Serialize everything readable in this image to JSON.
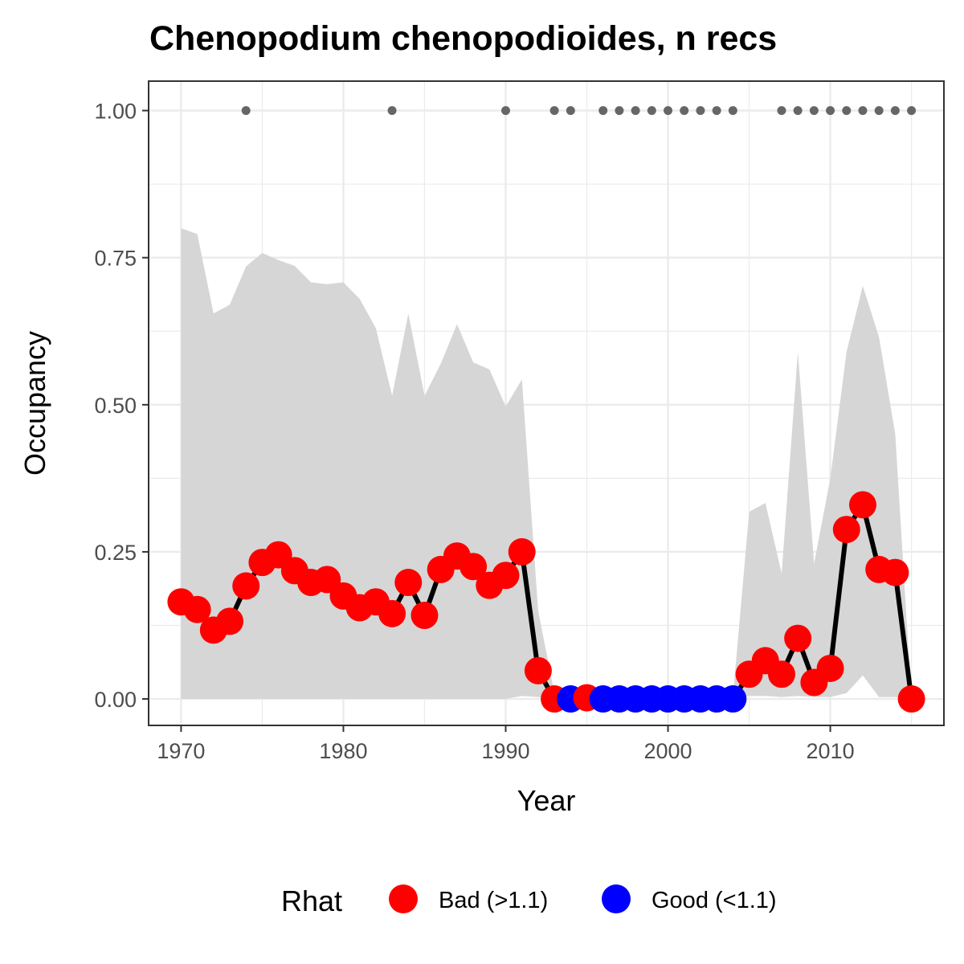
{
  "chart_data": {
    "type": "line",
    "title": "Chenopodium chenopodioides, n recs",
    "xlabel": "Year",
    "ylabel": "Occupancy",
    "xlim": [
      1968,
      2017
    ],
    "ylim": [
      -0.045,
      1.05
    ],
    "x_ticks": [
      1970,
      1980,
      1990,
      2000,
      2010
    ],
    "x_tick_labels": [
      "1970",
      "1980",
      "1990",
      "2000",
      "2010"
    ],
    "y_ticks": [
      0,
      0.25,
      0.5,
      0.75,
      1.0
    ],
    "y_tick_labels": [
      "0.00",
      "0.25",
      "0.50",
      "0.75",
      "1.00"
    ],
    "grid": true,
    "legend": {
      "title": "Rhat",
      "position": "bottom",
      "entries": [
        {
          "key": "bad",
          "label": "Bad (>1.1)",
          "color": "#ff0000"
        },
        {
          "key": "good",
          "label": "Good (<1.1)",
          "color": "#0000ff"
        }
      ]
    },
    "colors": {
      "line": "#000000",
      "ribbon": "#d6d6d6",
      "records": "#666666",
      "bad": "#ff0000",
      "good": "#0000ff",
      "panel_border": "#333333",
      "grid": "#ebebeb"
    },
    "series": [
      {
        "name": "Occupancy",
        "x": [
          1970,
          1971,
          1972,
          1973,
          1974,
          1975,
          1976,
          1977,
          1978,
          1979,
          1980,
          1981,
          1982,
          1983,
          1984,
          1985,
          1986,
          1987,
          1988,
          1989,
          1990,
          1991,
          1992,
          1993,
          1994,
          1995,
          1996,
          1997,
          1998,
          1999,
          2000,
          2001,
          2002,
          2003,
          2004,
          2005,
          2006,
          2007,
          2008,
          2009,
          2010,
          2011,
          2012,
          2013,
          2014,
          2015
        ],
        "y": [
          0.165,
          0.152,
          0.117,
          0.132,
          0.192,
          0.232,
          0.245,
          0.218,
          0.198,
          0.203,
          0.175,
          0.155,
          0.165,
          0.145,
          0.198,
          0.142,
          0.22,
          0.243,
          0.225,
          0.193,
          0.21,
          0.25,
          0.048,
          0.0,
          0.0,
          0.002,
          0.0,
          0.0,
          0.0,
          0.0,
          0.0,
          0.0,
          0.0,
          0.0,
          0.0,
          0.042,
          0.065,
          0.042,
          0.103,
          0.028,
          0.052,
          0.288,
          0.33,
          0.22,
          0.215,
          0.0
        ],
        "rhat": [
          "bad",
          "bad",
          "bad",
          "bad",
          "bad",
          "bad",
          "bad",
          "bad",
          "bad",
          "bad",
          "bad",
          "bad",
          "bad",
          "bad",
          "bad",
          "bad",
          "bad",
          "bad",
          "bad",
          "bad",
          "bad",
          "bad",
          "bad",
          "bad",
          "good",
          "bad",
          "good",
          "good",
          "good",
          "good",
          "good",
          "good",
          "good",
          "good",
          "good",
          "bad",
          "bad",
          "bad",
          "bad",
          "bad",
          "bad",
          "bad",
          "bad",
          "bad",
          "bad",
          "bad"
        ]
      }
    ],
    "ribbon": {
      "x": [
        1970,
        1971,
        1972,
        1973,
        1974,
        1975,
        1976,
        1977,
        1978,
        1979,
        1980,
        1981,
        1982,
        1983,
        1984,
        1985,
        1986,
        1987,
        1988,
        1989,
        1990,
        1991,
        1992,
        1993,
        1994,
        1995,
        1996,
        1997,
        1998,
        1999,
        2000,
        2001,
        2002,
        2003,
        2004,
        2005,
        2006,
        2007,
        2008,
        2009,
        2010,
        2011,
        2012,
        2013,
        2014,
        2015
      ],
      "upper": [
        0.8,
        0.79,
        0.655,
        0.67,
        0.735,
        0.758,
        0.746,
        0.736,
        0.708,
        0.705,
        0.708,
        0.68,
        0.63,
        0.515,
        0.655,
        0.515,
        0.57,
        0.637,
        0.572,
        0.56,
        0.497,
        0.543,
        0.15,
        0.01,
        0.005,
        0.005,
        0.003,
        0.003,
        0.003,
        0.003,
        0.003,
        0.003,
        0.003,
        0.003,
        0.003,
        0.318,
        0.333,
        0.213,
        0.59,
        0.23,
        0.375,
        0.59,
        0.702,
        0.615,
        0.45,
        0.0
      ],
      "lower": [
        0,
        0,
        0,
        0,
        0,
        0,
        0,
        0,
        0,
        0,
        0,
        0,
        0,
        0,
        0,
        0,
        0,
        0,
        0,
        0,
        0,
        0.005,
        0.003,
        0,
        0,
        0,
        0,
        0,
        0,
        0,
        0,
        0,
        0,
        0,
        0,
        0.005,
        0.005,
        0.003,
        0.005,
        0.003,
        0.003,
        0.01,
        0.04,
        0.003,
        0.003,
        0.0
      ]
    },
    "record_years": [
      1974,
      1983,
      1990,
      1993,
      1994,
      1996,
      1997,
      1998,
      1999,
      2000,
      2001,
      2002,
      2003,
      2004,
      2007,
      2008,
      2009,
      2010,
      2011,
      2012,
      2013,
      2014,
      2015
    ],
    "record_y": 1.0
  }
}
